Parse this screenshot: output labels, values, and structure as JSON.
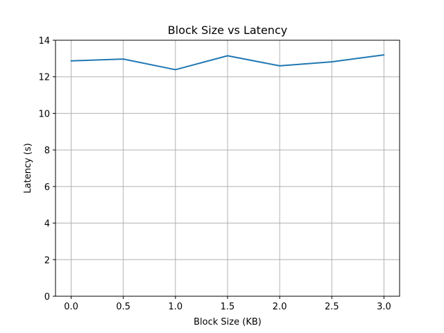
{
  "chart_data": {
    "type": "line",
    "title": "Block Size vs Latency",
    "xlabel": "Block Size (KB)",
    "ylabel": "Latency (s)",
    "x": [
      0.0,
      0.5,
      1.0,
      1.5,
      2.0,
      2.5,
      3.0
    ],
    "xticks": [
      "0.0",
      "0.5",
      "1.0",
      "1.5",
      "2.0",
      "2.5",
      "3.0"
    ],
    "xlim": [
      -0.15,
      3.15
    ],
    "yticks": [
      "0",
      "2",
      "4",
      "6",
      "8",
      "10",
      "12",
      "14"
    ],
    "ylim": [
      0,
      14
    ],
    "grid": true,
    "series": [
      {
        "values": [
          12.87,
          12.97,
          12.39,
          13.15,
          12.6,
          12.82,
          13.2
        ],
        "color": "#1f77b4"
      }
    ]
  }
}
